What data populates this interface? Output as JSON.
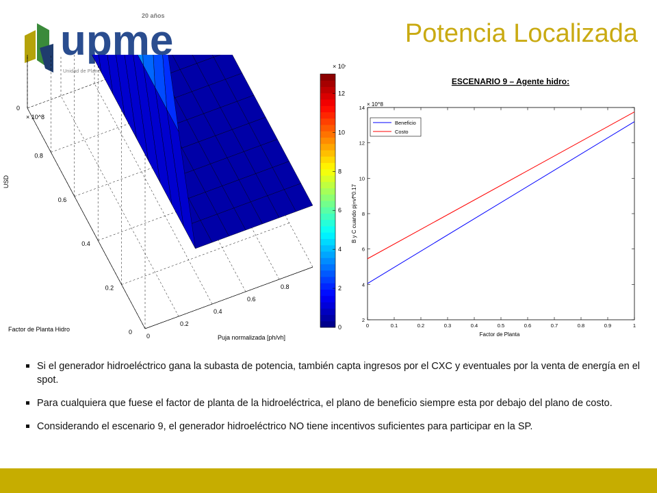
{
  "logo": {
    "name": "upme",
    "years": "20 años",
    "subtitle": "Unidad de Planeación Minero Energética"
  },
  "slide": {
    "title": "Potencia Localizada"
  },
  "bullets": [
    "Si el generador hidroeléctrico gana la subasta de potencia, también capta ingresos por el CXC y eventuales por la venta de energía en el spot.",
    "Para cualquiera que fuese el factor de planta de la hidroeléctrica, el plano de beneficio siempre esta por debajo del plano de costo.",
    "Considerando el escenario 9, el generador hidroeléctrico NO tiene incentivos suficientes para participar en la SP."
  ],
  "colors": {
    "title": "#c9aa12",
    "footer": "#c6ad00",
    "benefit": "#0000ff",
    "cost": "#ff0000"
  },
  "chart_data": [
    {
      "type": "heatmap",
      "title": "",
      "xlabel": "Puja normalizada [ph/vh]",
      "ylabel": "Factor de Planta Hidro",
      "zlabel": "USD",
      "z_multiplier": "× 10^8",
      "xlim": [
        0,
        1
      ],
      "ylim": [
        0,
        1
      ],
      "zlim": [
        0,
        13
      ],
      "x_ticks": [
        "0",
        "0.2",
        "0.4",
        "0.6",
        "0.8"
      ],
      "y_ticks": [
        "0",
        "0.2",
        "0.4",
        "0.6",
        "0.8"
      ],
      "z_ticks": [
        "0",
        "2",
        "4",
        "6",
        "8",
        "10",
        "12"
      ],
      "colorbar_ticks": [
        "0",
        "2",
        "4",
        "6",
        "8",
        "10",
        "12"
      ],
      "colorbar_multiplier": "× 10^8",
      "colormap": "jet",
      "description_note": "",
      "ridge_at_low_x": [
        3.0,
        3.9,
        4.7,
        5.6,
        6.5,
        7.4,
        8.3,
        9.2,
        10.1,
        11.0,
        12.0
      ],
      "plateau_value": 0.5
    },
    {
      "type": "line",
      "title": "ESCENARIO 9 – Agente hidro:",
      "xlabel": "Factor de Planta",
      "ylabel": "B y C cuando pj=vf*0.17",
      "y_multiplier": "× 10^8",
      "xlim": [
        0,
        1
      ],
      "ylim": [
        2,
        14
      ],
      "x_ticks": [
        "0",
        "0.1",
        "0.2",
        "0.3",
        "0.4",
        "0.5",
        "0.6",
        "0.7",
        "0.8",
        "0.9",
        "1"
      ],
      "y_ticks": [
        "2",
        "4",
        "6",
        "8",
        "10",
        "12",
        "14"
      ],
      "legend_position": "top-left",
      "x": [
        0,
        1
      ],
      "series": [
        {
          "name": "Beneficio",
          "color": "#0000ff",
          "values": [
            4.05,
            13.2
          ]
        },
        {
          "name": "Costo",
          "color": "#ff0000",
          "values": [
            5.45,
            13.75
          ]
        }
      ]
    }
  ]
}
